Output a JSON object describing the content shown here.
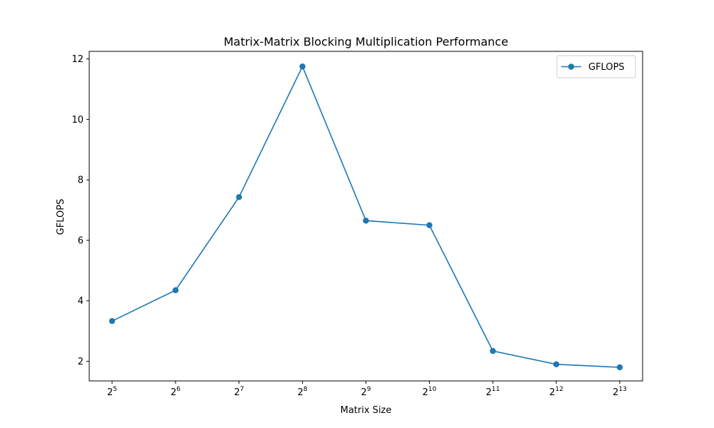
{
  "chart_data": {
    "type": "line",
    "title": "Matrix-Matrix Blocking Multiplication Performance",
    "xlabel": "Matrix Size",
    "ylabel": "GFLOPS",
    "x_scale": "log2",
    "x": [
      32,
      64,
      128,
      256,
      512,
      1024,
      2048,
      4096,
      8192
    ],
    "x_tick_labels": [
      {
        "base": "2",
        "exp": "5"
      },
      {
        "base": "2",
        "exp": "6"
      },
      {
        "base": "2",
        "exp": "7"
      },
      {
        "base": "2",
        "exp": "8"
      },
      {
        "base": "2",
        "exp": "9"
      },
      {
        "base": "2",
        "exp": "10"
      },
      {
        "base": "2",
        "exp": "11"
      },
      {
        "base": "2",
        "exp": "12"
      },
      {
        "base": "2",
        "exp": "13"
      }
    ],
    "y_ticks": [
      2,
      4,
      6,
      8,
      10,
      12
    ],
    "ylim": [
      1.35,
      12.25
    ],
    "grid": false,
    "legend_position": "top-right",
    "series": [
      {
        "name": "GFLOPS",
        "color": "#1f77b4",
        "marker": "circle",
        "values": [
          3.33,
          4.35,
          7.43,
          11.75,
          6.65,
          6.5,
          2.34,
          1.9,
          1.8
        ]
      }
    ]
  }
}
